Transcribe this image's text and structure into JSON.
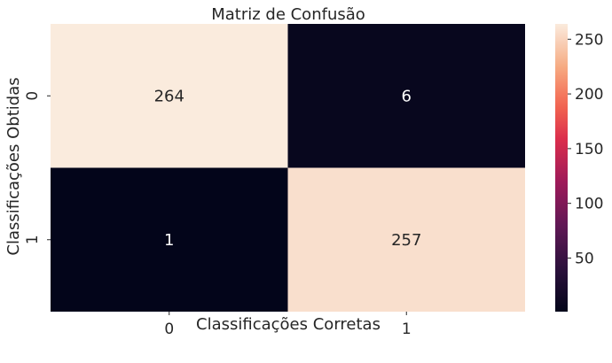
{
  "chart_data": {
    "type": "heatmap",
    "title": "Matriz de Confusão",
    "xlabel": "Classificações Corretas",
    "ylabel": "Classificações Obtidas",
    "x_categories": [
      "0",
      "1"
    ],
    "y_categories": [
      "0",
      "1"
    ],
    "values": [
      [
        264,
        6
      ],
      [
        1,
        257
      ]
    ],
    "color_range": [
      1,
      264
    ],
    "colorbar_ticks": [
      50,
      100,
      150,
      200,
      250
    ],
    "colormap": "rocket",
    "grid": false,
    "legend": "colorbar-right"
  }
}
